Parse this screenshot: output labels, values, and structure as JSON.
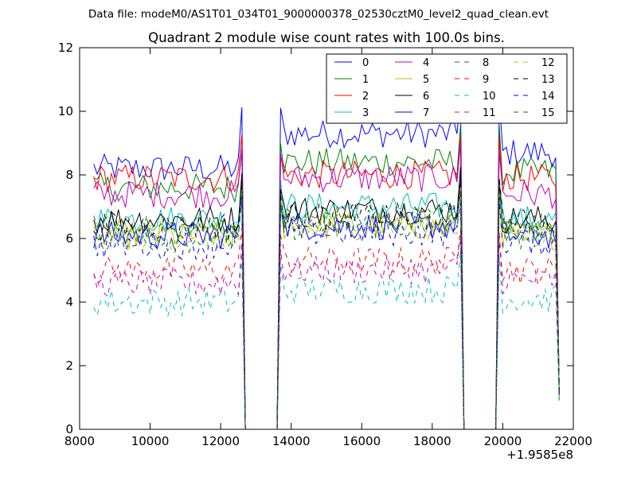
{
  "suptitle": "Data file: modeM0/AS1T01_034T01_9000000378_02530cztM0_level2_quad_clean.evt",
  "chart_data": {
    "type": "line",
    "title": "Quadrant 2 module wise count rates with 100.0s bins.",
    "xlabel": "",
    "ylabel": "",
    "x_offset_label": "+1.9585e8",
    "xlim": [
      8000,
      22000
    ],
    "ylim": [
      0,
      12
    ],
    "xticks": [
      "8000",
      "10000",
      "12000",
      "14000",
      "16000",
      "18000",
      "20000",
      "22000"
    ],
    "yticks": [
      "0",
      "2",
      "4",
      "6",
      "8",
      "10",
      "12"
    ],
    "grid": false,
    "legend_position": "top-right",
    "series": [
      {
        "name": "0",
        "color": "#0000ff",
        "style": "solid",
        "levels": [
          8.2,
          9.3,
          8.7,
          8.4
        ]
      },
      {
        "name": "1",
        "color": "#008000",
        "style": "solid",
        "levels": [
          7.6,
          8.4,
          8.1,
          8.1
        ]
      },
      {
        "name": "2",
        "color": "#ff0000",
        "style": "solid",
        "levels": [
          7.9,
          8.0,
          7.9,
          8.6
        ]
      },
      {
        "name": "3",
        "color": "#00bfbf",
        "style": "solid",
        "levels": [
          6.6,
          7.0,
          6.6,
          6.9
        ]
      },
      {
        "name": "4",
        "color": "#bf00bf",
        "style": "solid",
        "levels": [
          7.4,
          7.9,
          7.4,
          7.7
        ]
      },
      {
        "name": "5",
        "color": "#bfbf00",
        "style": "solid",
        "levels": [
          6.1,
          6.4,
          6.1,
          6.6
        ]
      },
      {
        "name": "6",
        "color": "#000000",
        "style": "solid",
        "levels": [
          6.6,
          6.9,
          6.6,
          6.8
        ]
      },
      {
        "name": "7",
        "color": "#0000ff",
        "style": "solid",
        "levels": [
          6.1,
          6.4,
          6.1,
          6.4
        ]
      },
      {
        "name": "8",
        "color": "#008000",
        "style": "dashed",
        "levels": [
          6.3,
          6.6,
          6.4,
          6.6
        ]
      },
      {
        "name": "9",
        "color": "#ff0000",
        "style": "dashed",
        "levels": [
          5.0,
          5.3,
          5.0,
          5.3
        ]
      },
      {
        "name": "10",
        "color": "#00bfbf",
        "style": "dashed",
        "levels": [
          4.0,
          4.4,
          4.1,
          4.5
        ]
      },
      {
        "name": "11",
        "color": "#bf00bf",
        "style": "dashed",
        "levels": [
          4.6,
          5.0,
          4.7,
          5.0
        ]
      },
      {
        "name": "12",
        "color": "#bfbf00",
        "style": "dashed",
        "levels": [
          6.1,
          6.4,
          6.1,
          6.5
        ]
      },
      {
        "name": "13",
        "color": "#000000",
        "style": "dashed",
        "levels": [
          6.4,
          6.7,
          6.5,
          6.8
        ]
      },
      {
        "name": "14",
        "color": "#0000ff",
        "style": "dashed",
        "levels": [
          5.8,
          6.2,
          5.9,
          6.2
        ]
      },
      {
        "name": "15",
        "color": "#008000",
        "style": "dashed",
        "levels": [
          6.0,
          6.4,
          6.1,
          6.4
        ]
      }
    ],
    "segments": [
      {
        "x_start": 8400,
        "x_end": 12600,
        "peak": [
          12600,
          9.8
        ]
      },
      {
        "x_start": 13700,
        "x_end": 18800,
        "peak": [
          18800,
          9.5
        ]
      },
      {
        "x_start": 19900,
        "x_end": 21500,
        "peak": [
          19900,
          10.3
        ]
      },
      {
        "x_start": 21500,
        "x_end": 21600
      }
    ],
    "zero_gaps": [
      [
        12700,
        13600
      ],
      [
        18900,
        19800
      ]
    ],
    "bin_seconds": 100,
    "noise_amplitude": 0.45
  }
}
